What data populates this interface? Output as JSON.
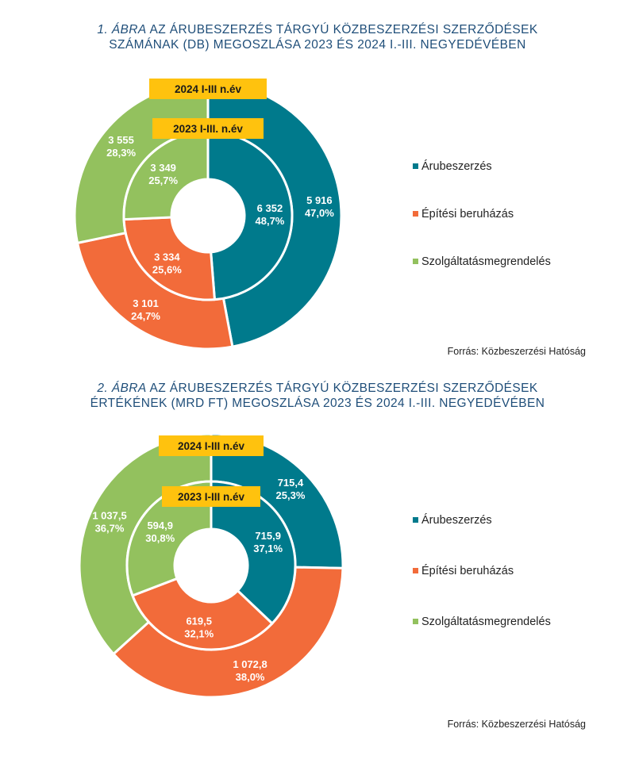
{
  "colors": {
    "arubeszerzes": "#007a8c",
    "epitesi": "#f26b3a",
    "szolgaltatas": "#93c15e",
    "title": "#1f4e79",
    "tag": "#ffc20e"
  },
  "figures": [
    {
      "title_num": "1. ÁBRA",
      "title_rest": " AZ ÁRUBESZERZÉS TÁRGYÚ KÖZBESZERZÉSI SZERZŐDÉSEK",
      "title_line2": "SZÁMÁNAK (DB) MEGOSZLÁSA 2023 ÉS 2024  I.-III. NEGYEDÉVÉBEN",
      "outer_tag": "2024 I-III n.év",
      "inner_tag": "2023 I-III. n.év",
      "legend": [
        "Árubeszerzés",
        "Építési beruházás",
        "Szolgáltatásmegrendelés"
      ],
      "source": "Forrás: Közbeszerzési Hatóság"
    },
    {
      "title_num": "2. ÁBRA",
      "title_rest": " AZ ÁRUBESZERZÉS TÁRGYÚ KÖZBESZERZÉSI SZERZŐDÉSEK",
      "title_line2": "ÉRTÉKÉNEK (MRD FT) MEGOSZLÁSA 2023 ÉS 2024 I.-III. NEGYEDÉVÉBEN",
      "outer_tag": "2024 I-III n.év",
      "inner_tag": "2023 I-III n.év",
      "legend": [
        "Árubeszerzés",
        "Építési beruházás",
        "Szolgáltatásmegrendelés"
      ],
      "source": "Forrás: Közbeszerzési Hatóság"
    }
  ],
  "chart_data": [
    {
      "type": "pie",
      "subtype": "double-donut",
      "categories": [
        "Árubeszerzés",
        "Építési beruházás",
        "Szolgáltatásmegrendelés"
      ],
      "series": [
        {
          "name": "2024 I-III n.év",
          "ring": "outer",
          "values": [
            5916,
            3101,
            3555
          ],
          "labels": [
            "5 916",
            "3 101",
            "3 555"
          ],
          "percent_labels": [
            "47,0%",
            "24,7%",
            "28,3%"
          ]
        },
        {
          "name": "2023 I-III. n.év",
          "ring": "inner",
          "values": [
            6352,
            3334,
            3349
          ],
          "labels": [
            "6 352",
            "3 334",
            "3 349"
          ],
          "percent_labels": [
            "48,7%",
            "25,6%",
            "25,7%"
          ]
        }
      ],
      "legend_position": "right"
    },
    {
      "type": "pie",
      "subtype": "double-donut",
      "categories": [
        "Árubeszerzés",
        "Építési beruházás",
        "Szolgáltatásmegrendelés"
      ],
      "series": [
        {
          "name": "2024 I-III n.év",
          "ring": "outer",
          "values": [
            715.4,
            1072.8,
            1037.5
          ],
          "labels": [
            "715,4",
            "1 072,8",
            "1 037,5"
          ],
          "percent_labels": [
            "25,3%",
            "38,0%",
            "36,7%"
          ]
        },
        {
          "name": "2023 I-III n.év",
          "ring": "inner",
          "values": [
            715.9,
            619.5,
            594.9
          ],
          "labels": [
            "715,9",
            "619,5",
            "594,9"
          ],
          "percent_labels": [
            "37,1%",
            "32,1%",
            "30,8%"
          ]
        }
      ],
      "legend_position": "right"
    }
  ]
}
